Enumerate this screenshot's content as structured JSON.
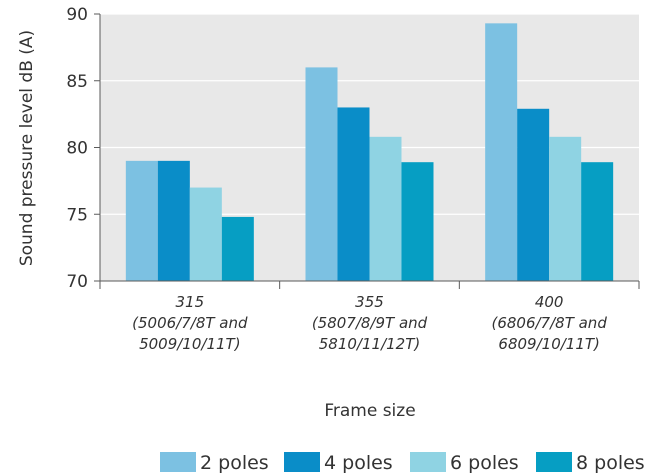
{
  "chart_data": {
    "type": "bar",
    "ylabel": "Sound pressure level dB (A)",
    "xlabel": "Frame size",
    "ylim": [
      70,
      90
    ],
    "yticks": [
      "70",
      "75",
      "80",
      "85",
      "90"
    ],
    "grid": true,
    "legend_position": "bottom",
    "categories": [
      {
        "lines": [
          "315",
          "(5006/7/8T and",
          "5009/10/11T)"
        ]
      },
      {
        "lines": [
          "355",
          "(5807/8/9T and",
          "5810/11/12T)"
        ]
      },
      {
        "lines": [
          "400",
          "(6806/7/8T and",
          "6809/10/11T)"
        ]
      }
    ],
    "series": [
      {
        "name": "2 poles",
        "color": "#7cc1e2",
        "values": [
          79,
          86,
          89.3
        ]
      },
      {
        "name": "4 poles",
        "color": "#0a8dc8",
        "values": [
          79,
          83,
          82.9
        ]
      },
      {
        "name": "6 poles",
        "color": "#8fd3e3",
        "values": [
          77,
          80.8,
          80.8
        ]
      },
      {
        "name": "8 poles",
        "color": "#069ec3",
        "values": [
          74.8,
          78.9,
          78.9
        ]
      }
    ],
    "colors": {
      "plot_background": "#e8e8e8",
      "grid": "#ffffff",
      "frame": "#5a5a5a"
    }
  }
}
